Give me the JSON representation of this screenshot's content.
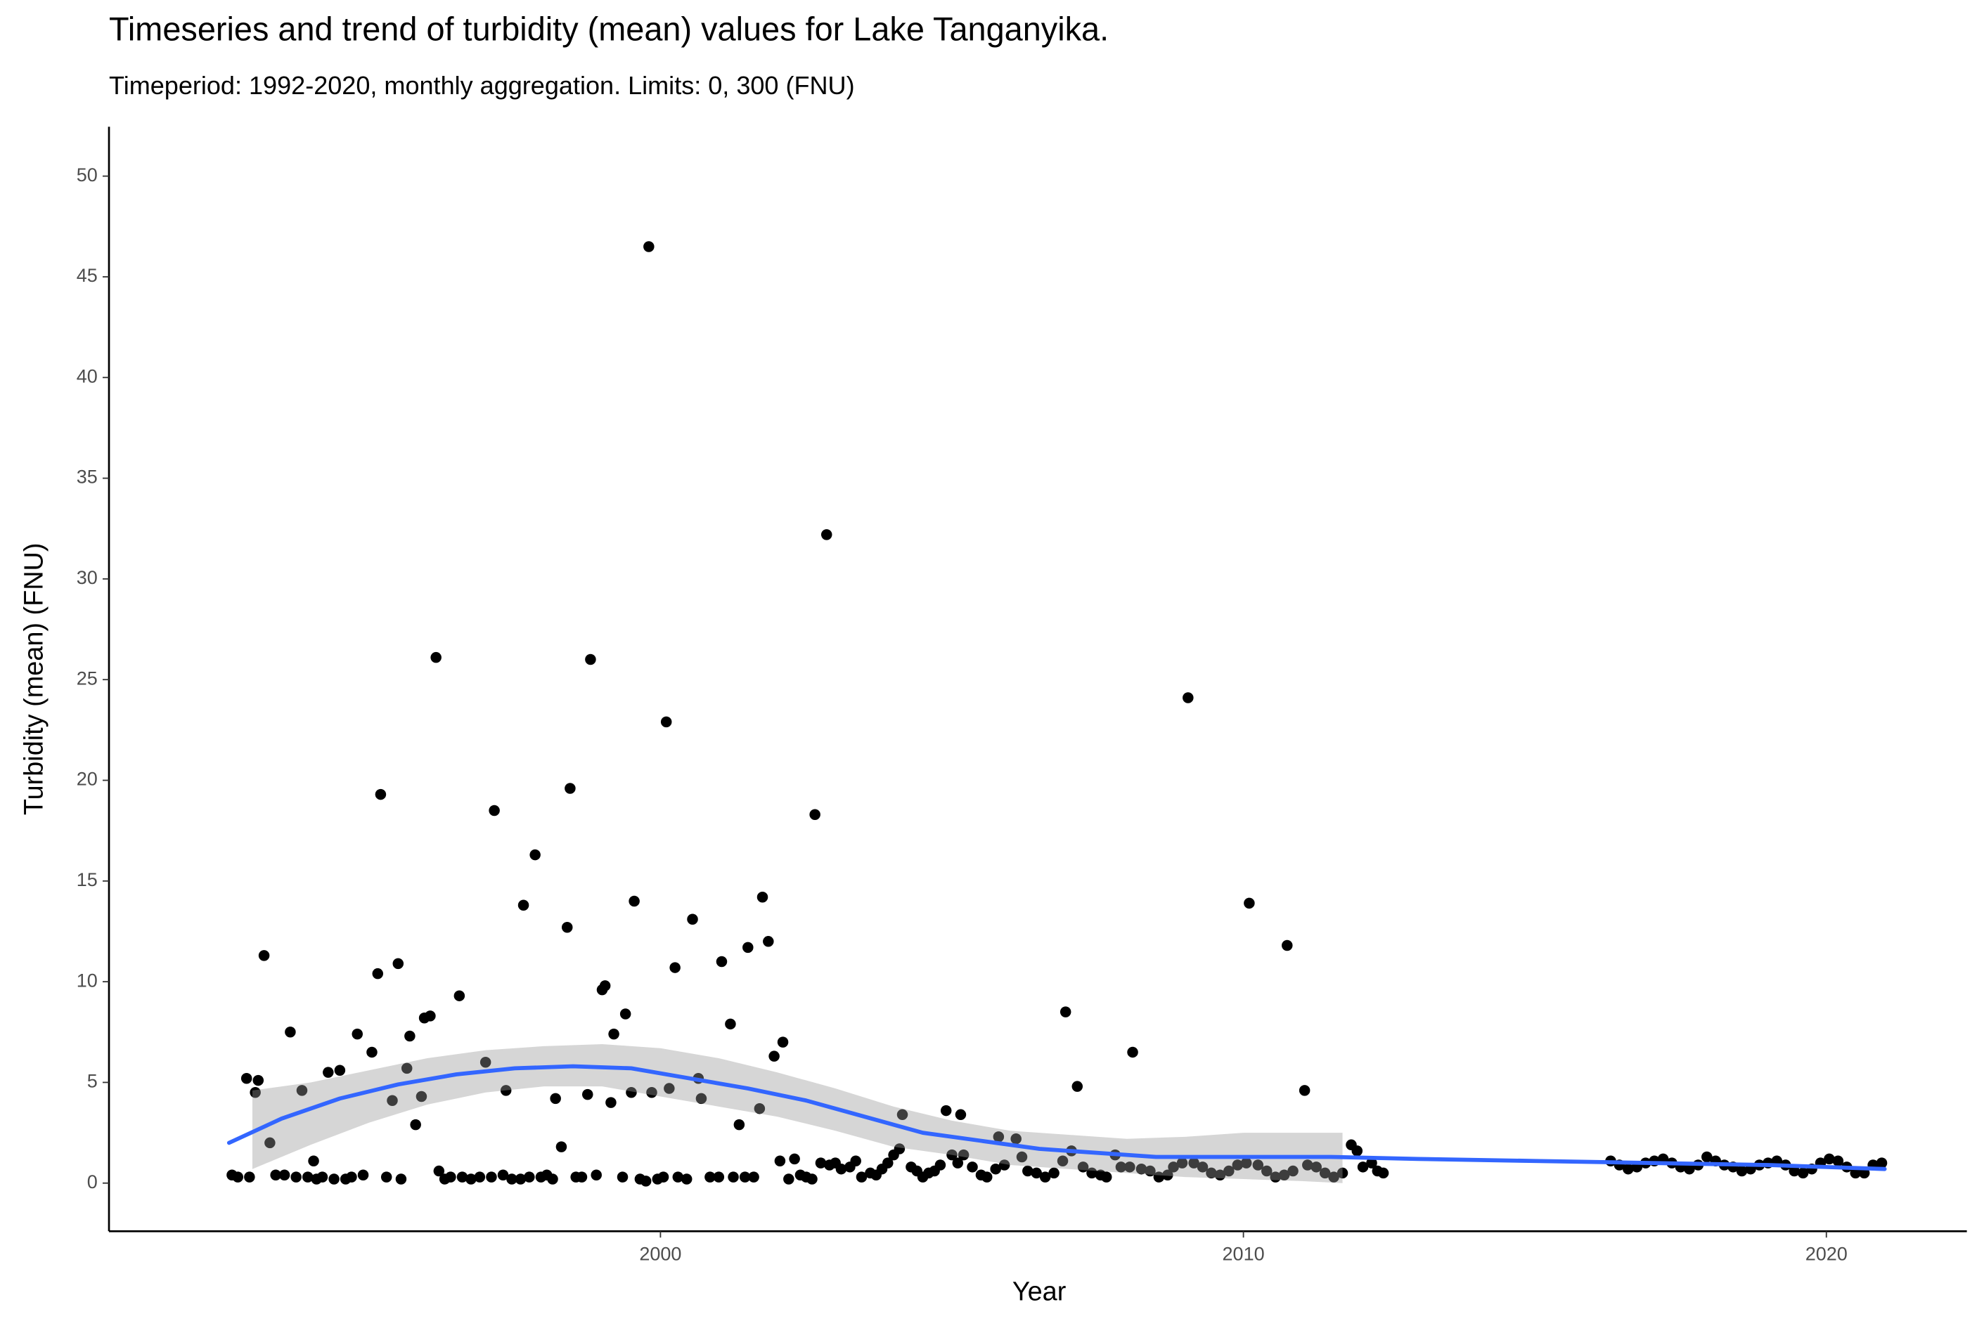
{
  "chart_data": {
    "type": "scatter",
    "title": "Timeseries and trend of turbidity (mean) values for Lake Tanganyika.",
    "subtitle": "Timeperiod: 1992-2020, monthly aggregation. Limits: 0, 300 (FNU)",
    "x_label": "Year",
    "y_label": "Turbidity (mean) (FNU)",
    "xlim": [
      1990.54,
      2022.41
    ],
    "ylim": [
      -2.39,
      52.45
    ],
    "xticks": [
      2000,
      2010,
      2020
    ],
    "yticks": [
      0,
      5,
      10,
      15,
      20,
      25,
      30,
      35,
      40,
      45,
      50
    ],
    "grid": false,
    "points": {
      "color": "#000000",
      "x": [
        1992.65,
        1992.75,
        1992.9,
        1992.95,
        1993.05,
        1993.1,
        1993.2,
        1993.3,
        1993.4,
        1993.55,
        1993.65,
        1993.75,
        1993.85,
        1993.95,
        1994.05,
        1994.1,
        1994.2,
        1994.3,
        1994.4,
        1994.5,
        1994.6,
        1994.7,
        1994.8,
        1994.9,
        1995.05,
        1995.15,
        1995.2,
        1995.3,
        1995.4,
        1995.5,
        1995.55,
        1995.65,
        1995.7,
        1995.8,
        1995.9,
        1995.95,
        1996.05,
        1996.15,
        1996.2,
        1996.3,
        1996.4,
        1996.55,
        1996.6,
        1996.75,
        1996.9,
        1997.0,
        1997.1,
        1997.15,
        1997.3,
        1997.35,
        1997.45,
        1997.6,
        1997.65,
        1997.75,
        1997.85,
        1997.95,
        1998.05,
        1998.15,
        1998.2,
        1998.3,
        1998.4,
        1998.45,
        1998.55,
        1998.65,
        1998.75,
        1998.8,
        1998.9,
        1999.0,
        1999.05,
        1999.15,
        1999.2,
        1999.35,
        1999.4,
        1999.5,
        1999.55,
        1999.65,
        1999.75,
        1999.8,
        1999.85,
        1999.95,
        2000.05,
        2000.1,
        2000.15,
        2000.25,
        2000.3,
        2000.45,
        2000.55,
        2000.65,
        2000.7,
        2000.85,
        2001.0,
        2001.05,
        2001.2,
        2001.25,
        2001.35,
        2001.45,
        2001.5,
        2001.6,
        2001.7,
        2001.75,
        2001.85,
        2001.95,
        2002.05,
        2002.1,
        2002.2,
        2002.3,
        2002.4,
        2002.5,
        2002.6,
        2002.65,
        2002.75,
        2002.85,
        2002.9,
        2003.0,
        2003.1,
        2003.25,
        2003.35,
        2003.45,
        2003.6,
        2003.7,
        2003.8,
        2003.9,
        2004.0,
        2004.1,
        2004.15,
        2004.3,
        2004.4,
        2004.5,
        2004.6,
        2004.7,
        2004.8,
        2004.9,
        2005.0,
        2005.1,
        2005.15,
        2005.2,
        2005.35,
        2005.5,
        2005.6,
        2005.75,
        2005.8,
        2005.9,
        2006.1,
        2006.2,
        2006.3,
        2006.45,
        2006.6,
        2006.75,
        2006.9,
        2006.95,
        2007.05,
        2007.15,
        2007.25,
        2007.4,
        2007.55,
        2007.65,
        2007.8,
        2007.9,
        2008.05,
        2008.1,
        2008.25,
        2008.4,
        2008.55,
        2008.7,
        2008.8,
        2008.95,
        2009.05,
        2009.15,
        2009.3,
        2009.45,
        2009.6,
        2009.75,
        2009.9,
        2010.05,
        2010.1,
        2010.25,
        2010.4,
        2010.55,
        2010.7,
        2010.75,
        2010.85,
        2011.05,
        2011.1,
        2011.25,
        2011.4,
        2011.55,
        2011.7,
        2011.85,
        2011.95,
        2012.05,
        2012.2,
        2012.3,
        2012.4,
        2016.3,
        2016.45,
        2016.6,
        2016.75,
        2016.9,
        2017.05,
        2017.2,
        2017.35,
        2017.5,
        2017.65,
        2017.8,
        2017.95,
        2018.1,
        2018.25,
        2018.4,
        2018.55,
        2018.7,
        2018.85,
        2019.0,
        2019.15,
        2019.3,
        2019.45,
        2019.6,
        2019.75,
        2019.9,
        2020.05,
        2020.2,
        2020.35,
        2020.5,
        2020.65,
        2020.8,
        2020.95
      ],
      "values": [
        0.4,
        0.3,
        5.2,
        0.3,
        4.5,
        5.1,
        11.3,
        2.0,
        0.4,
        0.4,
        7.5,
        0.3,
        4.6,
        0.3,
        1.1,
        0.2,
        0.3,
        5.5,
        0.2,
        5.6,
        0.2,
        0.3,
        7.4,
        0.4,
        6.5,
        10.4,
        19.3,
        0.3,
        4.1,
        10.9,
        0.2,
        5.7,
        7.3,
        2.9,
        4.3,
        8.2,
        8.3,
        26.1,
        0.6,
        0.2,
        0.3,
        9.3,
        0.3,
        0.2,
        0.3,
        6.0,
        0.3,
        18.5,
        0.4,
        4.6,
        0.2,
        0.2,
        13.8,
        0.3,
        16.3,
        0.3,
        0.4,
        0.2,
        4.2,
        1.8,
        12.7,
        19.6,
        0.3,
        0.3,
        4.4,
        26.0,
        0.4,
        9.6,
        9.8,
        4.0,
        7.4,
        0.3,
        8.4,
        4.5,
        14.0,
        0.2,
        0.1,
        46.5,
        4.5,
        0.2,
        0.3,
        22.9,
        4.7,
        10.7,
        0.3,
        0.2,
        13.1,
        5.2,
        4.2,
        0.3,
        0.3,
        11.0,
        7.9,
        0.3,
        2.9,
        0.3,
        11.7,
        0.3,
        3.7,
        14.2,
        12.0,
        6.3,
        1.1,
        7.0,
        0.2,
        1.2,
        0.4,
        0.3,
        0.2,
        18.3,
        1.0,
        32.2,
        0.9,
        1.0,
        0.7,
        0.8,
        1.1,
        0.3,
        0.5,
        0.4,
        0.7,
        1.0,
        1.4,
        1.7,
        3.4,
        0.8,
        0.6,
        0.3,
        0.5,
        0.6,
        0.9,
        3.6,
        1.4,
        1.0,
        3.4,
        1.4,
        0.8,
        0.4,
        0.3,
        0.7,
        2.3,
        0.9,
        2.2,
        1.3,
        0.6,
        0.5,
        0.3,
        0.5,
        1.1,
        8.5,
        1.6,
        4.8,
        0.8,
        0.5,
        0.4,
        0.3,
        1.4,
        0.8,
        0.8,
        6.5,
        0.7,
        0.6,
        0.3,
        0.4,
        0.8,
        1.0,
        24.1,
        1.0,
        0.8,
        0.5,
        0.4,
        0.6,
        0.9,
        1.0,
        13.9,
        0.9,
        0.6,
        0.3,
        0.4,
        11.8,
        0.6,
        4.6,
        0.9,
        0.8,
        0.5,
        0.3,
        0.5,
        1.9,
        1.6,
        0.8,
        1.0,
        0.6,
        0.5,
        1.1,
        0.9,
        0.7,
        0.8,
        1.0,
        1.1,
        1.2,
        1.0,
        0.8,
        0.7,
        0.9,
        1.3,
        1.1,
        0.9,
        0.8,
        0.6,
        0.7,
        0.9,
        1.0,
        1.1,
        0.9,
        0.6,
        0.5,
        0.7,
        1.0,
        1.2,
        1.1,
        0.8,
        0.5,
        0.5,
        0.9,
        1.0
      ]
    },
    "band": {
      "color": "#999999",
      "x": [
        1993.0,
        1994,
        1995,
        1996,
        1997,
        1998,
        1999,
        2000,
        2001,
        2002,
        2003,
        2004,
        2005,
        2006,
        2007,
        2008,
        2009,
        2010,
        2011,
        2011.7
      ],
      "lower": [
        0.7,
        1.9,
        3.0,
        3.9,
        4.5,
        4.8,
        4.8,
        4.3,
        3.8,
        3.3,
        2.6,
        1.8,
        1.4,
        0.9,
        0.7,
        0.5,
        0.3,
        0.2,
        0.1,
        0.0
      ],
      "upper": [
        4.6,
        5.0,
        5.6,
        6.2,
        6.6,
        6.8,
        6.9,
        6.7,
        6.2,
        5.5,
        4.7,
        3.8,
        3.1,
        2.6,
        2.4,
        2.2,
        2.3,
        2.5,
        2.5,
        2.5
      ]
    },
    "trend": {
      "color": "#3366ff",
      "x": [
        1992.6,
        1993.5,
        1994.5,
        1995.5,
        1996.5,
        1997.5,
        1998.5,
        1999.5,
        2000.5,
        2001.5,
        2002.5,
        2003.5,
        2004.5,
        2005.5,
        2006.5,
        2007.5,
        2008.5,
        2009.5,
        2010.5,
        2011.5,
        2013,
        2015,
        2017,
        2019,
        2021
      ],
      "values": [
        2.0,
        3.2,
        4.2,
        4.9,
        5.4,
        5.7,
        5.8,
        5.7,
        5.2,
        4.7,
        4.1,
        3.3,
        2.5,
        2.1,
        1.7,
        1.5,
        1.3,
        1.3,
        1.3,
        1.3,
        1.2,
        1.1,
        1.0,
        0.9,
        0.7
      ]
    }
  }
}
